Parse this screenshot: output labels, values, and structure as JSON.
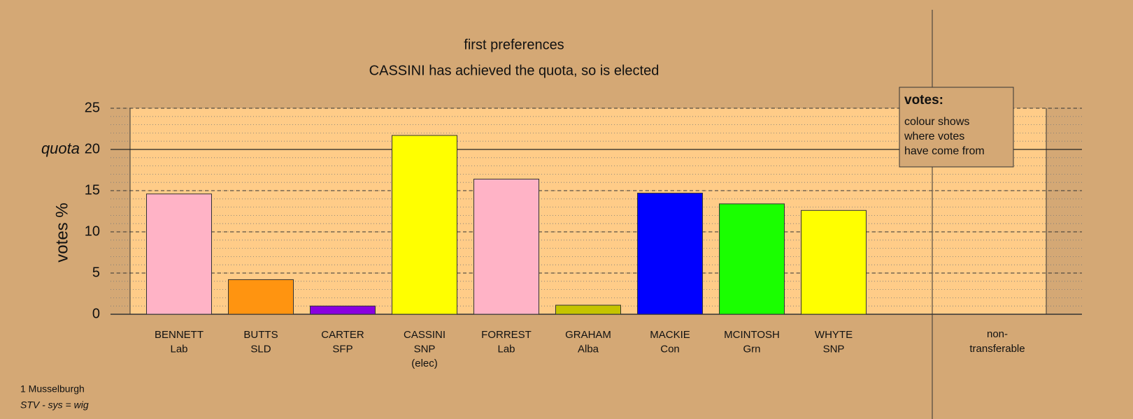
{
  "chart_data": {
    "type": "bar",
    "title": "first preferences",
    "subtitle": "CASSINI has achieved the quota, so is elected",
    "y_label": "votes %",
    "categories": [
      [
        "BENNETT",
        "Lab"
      ],
      [
        "BUTTS",
        "SLD"
      ],
      [
        "CARTER",
        "SFP"
      ],
      [
        "CASSINI",
        "SNP",
        "(elec)"
      ],
      [
        "FORREST",
        "Lab"
      ],
      [
        "GRAHAM",
        "Alba"
      ],
      [
        "MACKIE",
        "Con"
      ],
      [
        "MCINTOSH",
        "Grn"
      ],
      [
        "WHYTE",
        "SNP"
      ]
    ],
    "values": [
      14.6,
      4.2,
      1.0,
      21.7,
      16.4,
      1.1,
      14.7,
      13.4,
      12.6
    ],
    "colors": [
      "#ffb3c6",
      "#ff9410",
      "#8a00e0",
      "#ffff00",
      "#ffb3c6",
      "#c4c400",
      "#0000ff",
      "#1aff00",
      "#ffff00"
    ],
    "side_label": [
      "non-",
      "transferable"
    ],
    "ylim": [
      0,
      25
    ],
    "yticks": [
      0,
      5,
      10,
      15,
      20,
      25
    ],
    "minor_grid": 1,
    "quota": 20,
    "quota_label": "quota",
    "legend": {
      "title": "votes:",
      "lines": [
        "colour shows",
        "where votes",
        "have come from"
      ]
    },
    "footer": [
      "1 Musselburgh",
      "STV - sys = wig"
    ]
  }
}
